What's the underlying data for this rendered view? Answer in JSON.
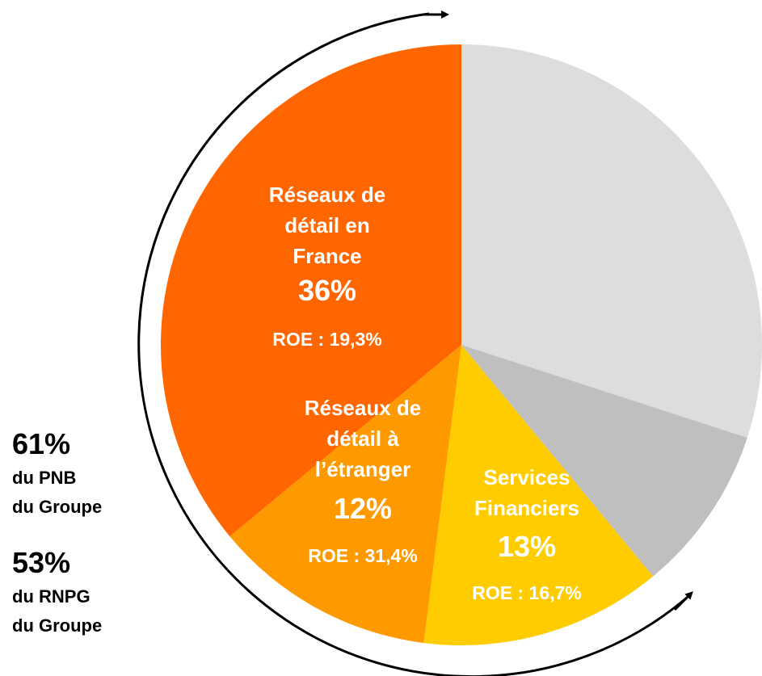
{
  "chart_data": {
    "type": "pie",
    "categories": [
      null,
      null,
      "Services\nFinanciers",
      "Réseaux de\ndétail à\nl’étranger",
      "Réseaux de\ndétail en\nFrance"
    ],
    "values": [
      30,
      9,
      13,
      12,
      36
    ],
    "value_labels": [
      null,
      null,
      "13%",
      "12%",
      "36%"
    ],
    "roe": [
      null,
      null,
      "ROE : 16,7%",
      "ROE : 31,4%",
      "ROE : 19,3%"
    ],
    "colors": [
      "#DDDDDD",
      "#BFBFBF",
      "#FFCC00",
      "#FF9900",
      "#FF6600"
    ],
    "side_notes": [
      {
        "value": "61%",
        "text": "du PNB\ndu Groupe"
      },
      {
        "value": "53%",
        "text": "du RNPG\ndu Groupe"
      }
    ]
  }
}
